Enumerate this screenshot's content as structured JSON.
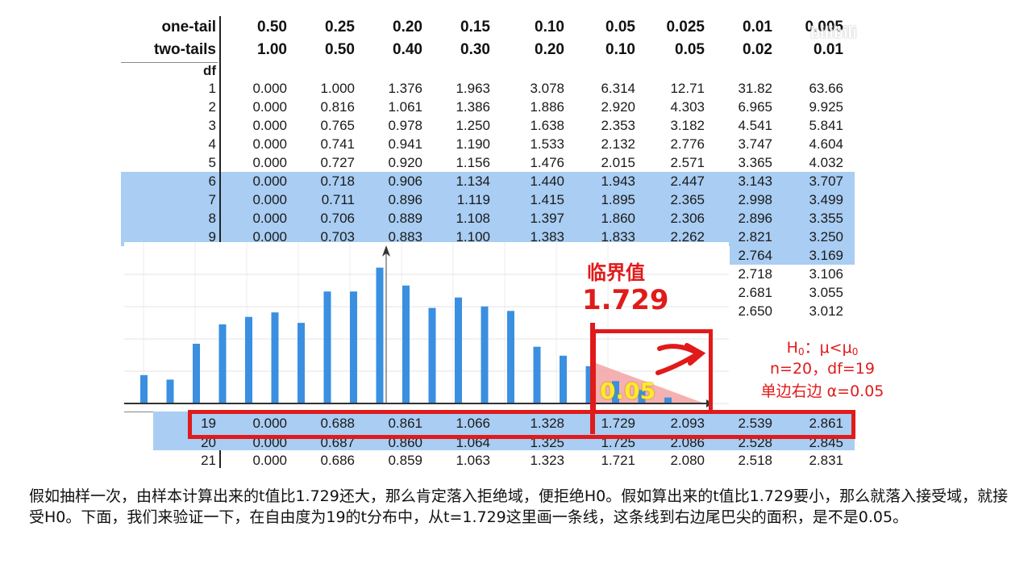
{
  "table": {
    "one_tail_label": "one-tail",
    "two_tails_label": "two-tails",
    "df_label": "df",
    "one_tail": [
      "0.50",
      "0.25",
      "0.20",
      "0.15",
      "0.10",
      "0.05",
      "0.025",
      "0.01",
      "0.005"
    ],
    "two_tails": [
      "1.00",
      "0.50",
      "0.40",
      "0.30",
      "0.20",
      "0.10",
      "0.05",
      "0.02",
      "0.01"
    ],
    "rows": [
      {
        "df": "1",
        "vals": [
          "0.000",
          "1.000",
          "1.376",
          "1.963",
          "3.078",
          "6.314",
          "12.71",
          "31.82",
          "63.66"
        ]
      },
      {
        "df": "2",
        "vals": [
          "0.000",
          "0.816",
          "1.061",
          "1.386",
          "1.886",
          "2.920",
          "4.303",
          "6.965",
          "9.925"
        ]
      },
      {
        "df": "3",
        "vals": [
          "0.000",
          "0.765",
          "0.978",
          "1.250",
          "1.638",
          "2.353",
          "3.182",
          "4.541",
          "5.841"
        ]
      },
      {
        "df": "4",
        "vals": [
          "0.000",
          "0.741",
          "0.941",
          "1.190",
          "1.533",
          "2.132",
          "2.776",
          "3.747",
          "4.604"
        ]
      },
      {
        "df": "5",
        "vals": [
          "0.000",
          "0.727",
          "0.920",
          "1.156",
          "1.476",
          "2.015",
          "2.571",
          "3.365",
          "4.032"
        ]
      },
      {
        "df": "6",
        "vals": [
          "0.000",
          "0.718",
          "0.906",
          "1.134",
          "1.440",
          "1.943",
          "2.447",
          "3.143",
          "3.707"
        ]
      },
      {
        "df": "7",
        "vals": [
          "0.000",
          "0.711",
          "0.896",
          "1.119",
          "1.415",
          "1.895",
          "2.365",
          "2.998",
          "3.499"
        ]
      },
      {
        "df": "8",
        "vals": [
          "0.000",
          "0.706",
          "0.889",
          "1.108",
          "1.397",
          "1.860",
          "2.306",
          "2.896",
          "3.355"
        ]
      },
      {
        "df": "9",
        "vals": [
          "0.000",
          "0.703",
          "0.883",
          "1.100",
          "1.383",
          "1.833",
          "2.262",
          "2.821",
          "3.250"
        ]
      }
    ],
    "partial_rows": [
      {
        "vals": [
          "2.764",
          "3.169"
        ]
      },
      {
        "vals": [
          "2.718",
          "3.106"
        ]
      },
      {
        "vals": [
          "2.681",
          "3.055"
        ]
      },
      {
        "vals": [
          "2.650",
          "3.012"
        ]
      }
    ],
    "row19": {
      "df": "19",
      "vals": [
        "0.000",
        "0.688",
        "0.861",
        "1.066",
        "1.328",
        "1.729",
        "2.093",
        "2.539",
        "2.861"
      ]
    },
    "row20": {
      "df": "20",
      "vals": [
        "0.000",
        "0.687",
        "0.860",
        "1.064",
        "1.325",
        "1.725",
        "2.086",
        "2.528",
        "2.845"
      ]
    },
    "row21": {
      "df": "21",
      "vals": [
        "0.000",
        "0.686",
        "0.859",
        "1.063",
        "1.323",
        "1.721",
        "2.080",
        "2.518",
        "2.831"
      ]
    }
  },
  "chart_data": {
    "type": "bar",
    "values": [
      0.19,
      0.16,
      0.4,
      0.53,
      0.58,
      0.61,
      0.54,
      0.75,
      0.75,
      0.91,
      0.79,
      0.64,
      0.71,
      0.65,
      0.62,
      0.38,
      0.32,
      0.25,
      0.15,
      0.09,
      0.04
    ],
    "highlight_area": 0.05
  },
  "annotations": {
    "critical_label": "临界值",
    "critical_value": "1.729",
    "area_value": "0.05",
    "hypothesis": "H0：μ<μ0",
    "sample": "n=20，df=19",
    "test": "单边右边 α=0.05"
  },
  "caption": "假如抽样一次，由样本计算出来的t值比1.729还大，那么肯定落入拒绝域，便拒绝H0。假如算出来的t值比1.729要小，那么就落入接受域，就接受H0。下面，我们来验证一下，在自由度为19的t分布中，从t=1.729这里画一条线，这条线到右边尾巴尖的面积，是不是0.05。",
  "colors": {
    "bar": "#3a8fe0",
    "highlight": "#a9cdf3",
    "red": "#e11a1a"
  }
}
